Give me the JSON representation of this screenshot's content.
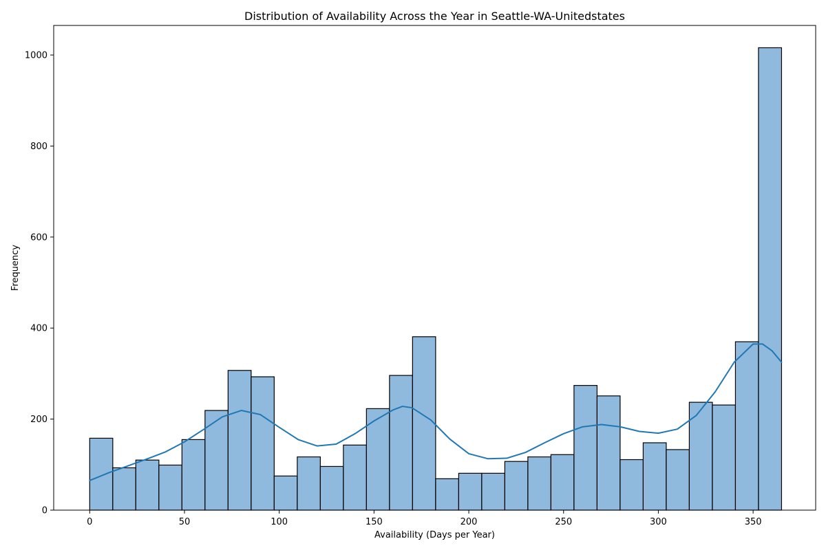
{
  "chart_data": {
    "type": "bar",
    "title": "Distribution of Availability Across the Year in Seattle-WA-Unitedstates",
    "xlabel": "Availability (Days per Year)",
    "ylabel": "Frequency",
    "xlim": [
      -19,
      383
    ],
    "ylim": [
      0,
      1065
    ],
    "x_ticks": [
      0,
      50,
      100,
      150,
      200,
      250,
      300,
      350
    ],
    "y_ticks": [
      0,
      200,
      400,
      600,
      800,
      1000
    ],
    "grid": false,
    "bin_edges": [
      0,
      12.17,
      24.33,
      36.5,
      48.67,
      60.83,
      73,
      85.17,
      97.33,
      109.5,
      121.67,
      133.83,
      146,
      158.17,
      170.33,
      182.5,
      194.67,
      206.83,
      219,
      231.17,
      243.33,
      255.5,
      267.67,
      279.83,
      292,
      304.17,
      316.33,
      328.5,
      340.67,
      352.83,
      365
    ],
    "series": [
      {
        "values": [
          158,
          93,
          110,
          99,
          155,
          219,
          307,
          293,
          75,
          117,
          96,
          143,
          223,
          296,
          381,
          69,
          81,
          81,
          107,
          117,
          122,
          274,
          251,
          111,
          148,
          133,
          237,
          231,
          370,
          1016
        ]
      }
    ],
    "kde": {
      "x": [
        0,
        10,
        20,
        30,
        40,
        50,
        60,
        70,
        80,
        90,
        100,
        110,
        120,
        130,
        140,
        150,
        160,
        165,
        170,
        180,
        190,
        200,
        210,
        220,
        230,
        240,
        250,
        260,
        270,
        280,
        290,
        300,
        310,
        320,
        330,
        340,
        350,
        355,
        360,
        365
      ],
      "y": [
        65,
        82,
        97,
        112,
        128,
        150,
        177,
        205,
        219,
        210,
        182,
        155,
        141,
        145,
        168,
        196,
        220,
        228,
        225,
        198,
        156,
        124,
        113,
        114,
        127,
        148,
        168,
        183,
        188,
        183,
        173,
        169,
        178,
        208,
        260,
        325,
        365,
        365,
        350,
        325
      ]
    },
    "colors": {
      "bar_fill": "#8fbadd",
      "bar_edge": "#000000",
      "kde_line": "#1f77b4"
    }
  }
}
